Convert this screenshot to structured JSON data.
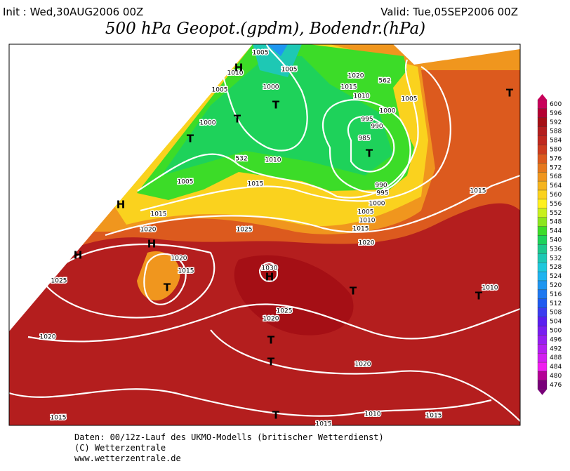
{
  "header": {
    "init": "Init : Wed,30AUG2006 00Z",
    "valid": "Valid: Tue,05SEP2006 00Z",
    "title": "500 hPa Geopot.(gpdm), Bodendr.(hPa)"
  },
  "map": {
    "labels": [
      "1005",
      "1010",
      "H",
      "1005",
      "1005",
      "1000",
      "T",
      "1020",
      "1015",
      "562",
      "1010",
      "1005",
      "1000",
      "T",
      "1000",
      "T",
      "995",
      "990",
      "985",
      "T",
      "532",
      "1010",
      "1005",
      "1015",
      "990",
      "995",
      "1000",
      "H",
      "1015",
      "1005",
      "1010",
      "1015",
      "1015",
      "1020",
      "1025",
      "H",
      "1020",
      "H",
      "1020",
      "1015",
      "1030",
      "H",
      "1025",
      "T",
      "T",
      "1010",
      "T",
      "1025",
      "1020",
      "1020",
      "T",
      "T",
      "1020",
      "T",
      "1015",
      "1010",
      "1015",
      "1015",
      "T"
    ]
  },
  "colorbar": {
    "ticks": [
      600,
      596,
      592,
      588,
      584,
      580,
      576,
      572,
      568,
      564,
      560,
      556,
      552,
      548,
      544,
      540,
      536,
      532,
      528,
      524,
      520,
      516,
      512,
      508,
      504,
      500,
      496,
      492,
      488,
      484,
      480,
      476
    ],
    "colors": [
      "#c8005a",
      "#b40032",
      "#a50f15",
      "#b41e1e",
      "#c0281e",
      "#cd3c1e",
      "#dc5a1e",
      "#e6781e",
      "#f0961e",
      "#f5b41e",
      "#fad21e",
      "#fff01e",
      "#c8f01e",
      "#8ce61e",
      "#3cdc28",
      "#1ed25a",
      "#1ec88c",
      "#1ec8b4",
      "#1ec8dc",
      "#1eb4f0",
      "#1e96f0",
      "#1e78f0",
      "#1e5af0",
      "#3c3cf0",
      "#5a1ef0",
      "#781ef0",
      "#961ef0",
      "#b41ef0",
      "#d21ef0",
      "#f01ef0",
      "#b40096",
      "#780078"
    ]
  },
  "footer": {
    "lines": [
      "Daten: 00/12z-Lauf des UKMO-Modells (britischer Wetterdienst)",
      "(C) Wetterzentrale",
      "www.wetterzentrale.de"
    ]
  }
}
